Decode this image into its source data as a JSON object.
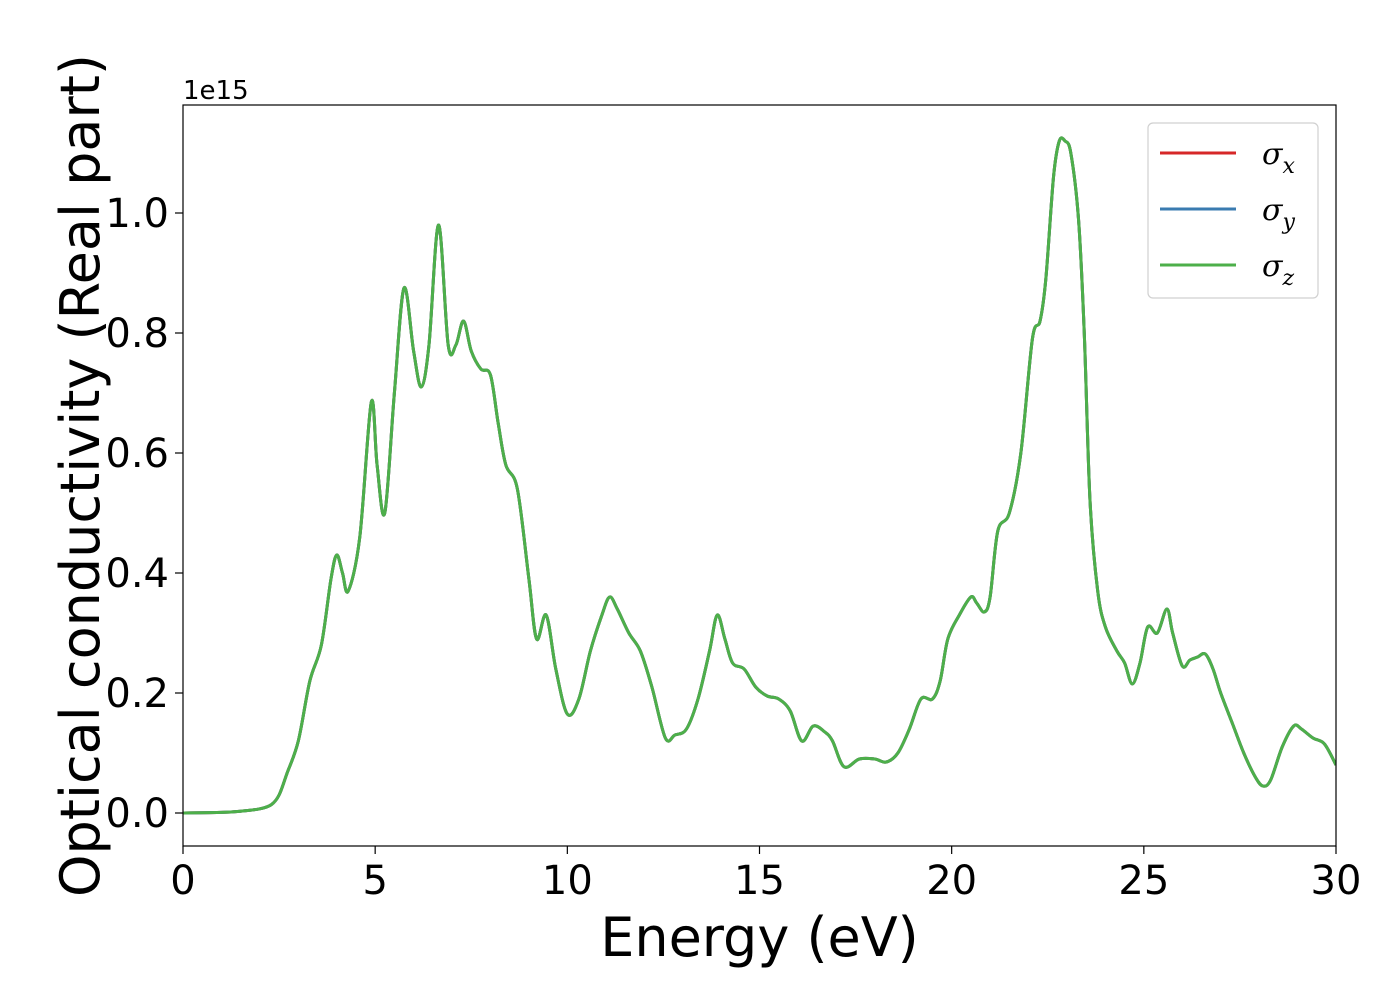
{
  "chart_data": {
    "type": "line",
    "xlabel": "Energy (eV)",
    "ylabel": "Optical conductivity (Real part)",
    "y_offset_label": "1e15",
    "y_scale": 1000000000000000.0,
    "xlim": [
      0,
      30
    ],
    "ylim": [
      -0.055,
      1.18
    ],
    "x_ticks": [
      0,
      5,
      10,
      15,
      20,
      25,
      30
    ],
    "x_tick_labels": [
      "0",
      "5",
      "10",
      "15",
      "20",
      "25",
      "30"
    ],
    "y_ticks": [
      0.0,
      0.2,
      0.4,
      0.6,
      0.8,
      1.0
    ],
    "y_tick_labels": [
      "0.0",
      "0.2",
      "0.4",
      "0.6",
      "0.8",
      "1.0"
    ],
    "grid": false,
    "legend_position": "top-right",
    "x": [
      0,
      1,
      1.5,
      2,
      2.3,
      2.5,
      2.7,
      3.0,
      3.3,
      3.6,
      3.85,
      4.0,
      4.15,
      4.3,
      4.6,
      4.9,
      5.05,
      5.25,
      5.5,
      5.75,
      6.0,
      6.2,
      6.4,
      6.65,
      6.9,
      7.1,
      7.3,
      7.5,
      7.75,
      8.0,
      8.2,
      8.4,
      8.7,
      9.0,
      9.2,
      9.45,
      9.7,
      10.0,
      10.3,
      10.6,
      10.9,
      11.1,
      11.3,
      11.6,
      11.9,
      12.2,
      12.55,
      12.8,
      13.1,
      13.4,
      13.7,
      13.9,
      14.1,
      14.3,
      14.6,
      14.9,
      15.2,
      15.5,
      15.8,
      16.1,
      16.4,
      16.7,
      16.9,
      17.2,
      17.6,
      18.0,
      18.3,
      18.6,
      18.9,
      19.2,
      19.5,
      19.7,
      19.9,
      20.2,
      20.5,
      20.65,
      20.85,
      21.0,
      21.2,
      21.5,
      21.8,
      22.1,
      22.3,
      22.45,
      22.65,
      22.8,
      22.95,
      23.1,
      23.3,
      23.45,
      23.6,
      23.8,
      24.0,
      24.3,
      24.5,
      24.7,
      24.9,
      25.1,
      25.35,
      25.6,
      25.75,
      26.0,
      26.2,
      26.4,
      26.6,
      26.8,
      27.0,
      27.3,
      27.6,
      27.9,
      28.1,
      28.3,
      28.6,
      28.9,
      29.1,
      29.4,
      29.7,
      30.0
    ],
    "series": [
      {
        "name": "σx",
        "color": "#d62728",
        "values": [
          0.0,
          0.001,
          0.003,
          0.007,
          0.014,
          0.03,
          0.065,
          0.12,
          0.22,
          0.28,
          0.39,
          0.43,
          0.4,
          0.37,
          0.46,
          0.685,
          0.58,
          0.5,
          0.7,
          0.875,
          0.77,
          0.71,
          0.78,
          0.98,
          0.78,
          0.78,
          0.82,
          0.77,
          0.74,
          0.73,
          0.65,
          0.58,
          0.54,
          0.39,
          0.29,
          0.33,
          0.24,
          0.165,
          0.19,
          0.27,
          0.33,
          0.36,
          0.34,
          0.3,
          0.27,
          0.21,
          0.125,
          0.13,
          0.14,
          0.19,
          0.27,
          0.33,
          0.29,
          0.25,
          0.24,
          0.21,
          0.195,
          0.19,
          0.17,
          0.12,
          0.145,
          0.135,
          0.12,
          0.077,
          0.09,
          0.09,
          0.085,
          0.1,
          0.14,
          0.19,
          0.19,
          0.22,
          0.29,
          0.33,
          0.36,
          0.35,
          0.335,
          0.36,
          0.47,
          0.5,
          0.6,
          0.79,
          0.82,
          0.89,
          1.06,
          1.12,
          1.12,
          1.1,
          0.99,
          0.8,
          0.52,
          0.37,
          0.31,
          0.27,
          0.25,
          0.215,
          0.25,
          0.31,
          0.3,
          0.34,
          0.3,
          0.245,
          0.255,
          0.26,
          0.265,
          0.24,
          0.2,
          0.15,
          0.1,
          0.06,
          0.045,
          0.055,
          0.11,
          0.145,
          0.14,
          0.125,
          0.115,
          0.08
        ]
      },
      {
        "name": "σy",
        "color": "#3a7bb0",
        "values": [
          0.0,
          0.001,
          0.003,
          0.007,
          0.014,
          0.03,
          0.065,
          0.12,
          0.22,
          0.28,
          0.39,
          0.43,
          0.4,
          0.37,
          0.46,
          0.685,
          0.58,
          0.5,
          0.7,
          0.875,
          0.77,
          0.71,
          0.78,
          0.98,
          0.78,
          0.78,
          0.82,
          0.77,
          0.74,
          0.73,
          0.65,
          0.58,
          0.54,
          0.39,
          0.29,
          0.33,
          0.24,
          0.165,
          0.19,
          0.27,
          0.33,
          0.36,
          0.34,
          0.3,
          0.27,
          0.21,
          0.125,
          0.13,
          0.14,
          0.19,
          0.27,
          0.33,
          0.29,
          0.25,
          0.24,
          0.21,
          0.195,
          0.19,
          0.17,
          0.12,
          0.145,
          0.135,
          0.12,
          0.077,
          0.09,
          0.09,
          0.085,
          0.1,
          0.14,
          0.19,
          0.19,
          0.22,
          0.29,
          0.33,
          0.36,
          0.35,
          0.335,
          0.36,
          0.47,
          0.5,
          0.6,
          0.79,
          0.82,
          0.89,
          1.06,
          1.12,
          1.12,
          1.1,
          0.99,
          0.8,
          0.52,
          0.37,
          0.31,
          0.27,
          0.25,
          0.215,
          0.25,
          0.31,
          0.3,
          0.34,
          0.3,
          0.245,
          0.255,
          0.26,
          0.265,
          0.24,
          0.2,
          0.15,
          0.1,
          0.06,
          0.045,
          0.055,
          0.11,
          0.145,
          0.14,
          0.125,
          0.115,
          0.08
        ]
      },
      {
        "name": "σz",
        "color": "#4daf4a",
        "values": [
          0.0,
          0.001,
          0.003,
          0.007,
          0.014,
          0.03,
          0.065,
          0.12,
          0.22,
          0.28,
          0.39,
          0.43,
          0.4,
          0.37,
          0.46,
          0.685,
          0.58,
          0.5,
          0.7,
          0.875,
          0.77,
          0.71,
          0.78,
          0.98,
          0.78,
          0.78,
          0.82,
          0.77,
          0.74,
          0.73,
          0.65,
          0.58,
          0.54,
          0.39,
          0.29,
          0.33,
          0.24,
          0.165,
          0.19,
          0.27,
          0.33,
          0.36,
          0.34,
          0.3,
          0.27,
          0.21,
          0.125,
          0.13,
          0.14,
          0.19,
          0.27,
          0.33,
          0.29,
          0.25,
          0.24,
          0.21,
          0.195,
          0.19,
          0.17,
          0.12,
          0.145,
          0.135,
          0.12,
          0.077,
          0.09,
          0.09,
          0.085,
          0.1,
          0.14,
          0.19,
          0.19,
          0.22,
          0.29,
          0.33,
          0.36,
          0.35,
          0.335,
          0.36,
          0.47,
          0.5,
          0.6,
          0.79,
          0.82,
          0.89,
          1.06,
          1.12,
          1.12,
          1.1,
          0.99,
          0.8,
          0.52,
          0.37,
          0.31,
          0.27,
          0.25,
          0.215,
          0.25,
          0.31,
          0.3,
          0.34,
          0.3,
          0.245,
          0.255,
          0.26,
          0.265,
          0.24,
          0.2,
          0.15,
          0.1,
          0.06,
          0.045,
          0.055,
          0.11,
          0.145,
          0.14,
          0.125,
          0.115,
          0.08
        ]
      }
    ]
  }
}
